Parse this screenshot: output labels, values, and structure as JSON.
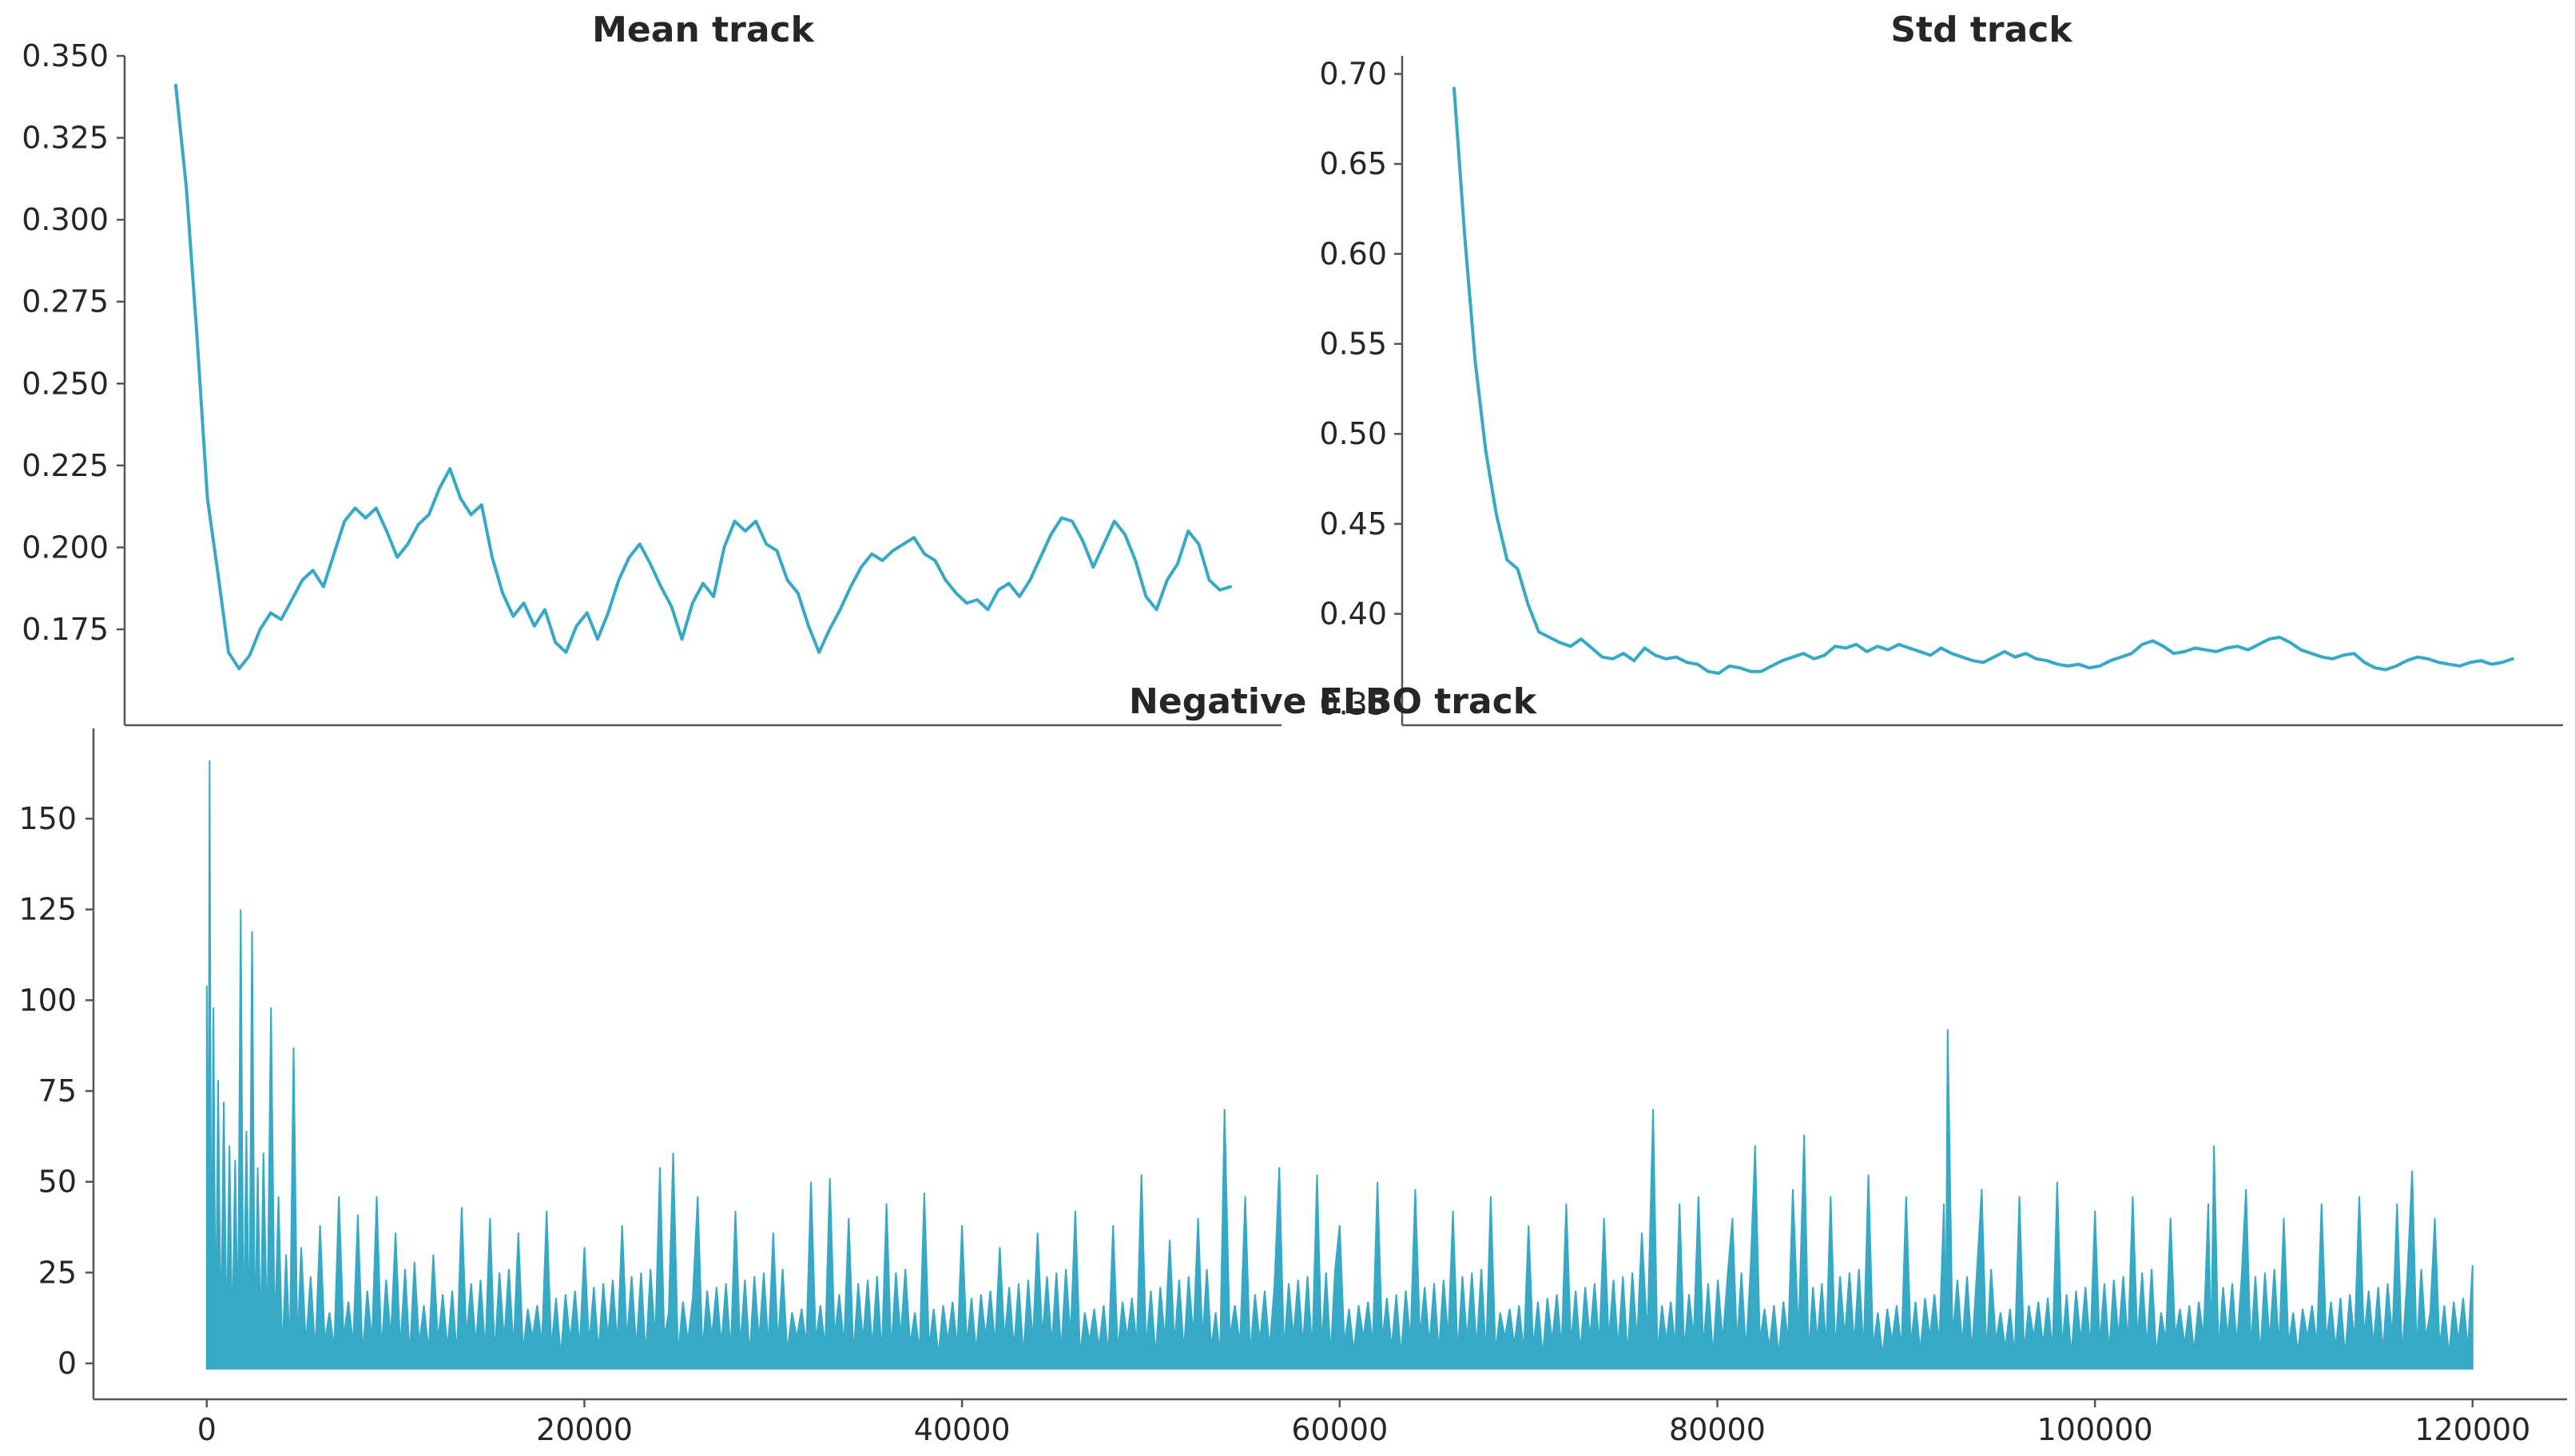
{
  "figure": {
    "background": "#ffffff",
    "line_color": "#35a9c6",
    "text_color": "#262626"
  },
  "chart_data": [
    {
      "id": "mean",
      "type": "line",
      "title": "Mean track",
      "xlabel": "",
      "ylabel": "",
      "xlim": [
        0,
        120000
      ],
      "ylim": [
        0.155,
        0.35
      ],
      "yticks": [
        0.175,
        0.2,
        0.225,
        0.25,
        0.275,
        0.3,
        0.325,
        0.35
      ],
      "ytick_labels": [
        "0.175",
        "0.200",
        "0.225",
        "0.250",
        "0.275",
        "0.300",
        "0.325",
        "0.350"
      ],
      "x_ticks_visible": false,
      "grid": false,
      "series": [
        {
          "color": "#35a9c6",
          "x": [
            0,
            1200,
            2400,
            3600,
            4800,
            6000,
            7200,
            8400,
            9600,
            10800,
            12000,
            13200,
            14400,
            15600,
            16800,
            18000,
            19200,
            20400,
            21600,
            22800,
            24000,
            25200,
            26400,
            27600,
            28800,
            30000,
            31200,
            32400,
            33600,
            34800,
            36000,
            37200,
            38400,
            39600,
            40800,
            42000,
            43200,
            44400,
            45600,
            46800,
            48000,
            49200,
            50400,
            51600,
            52800,
            54000,
            55200,
            56400,
            57600,
            58800,
            60000,
            61200,
            62400,
            63600,
            64800,
            66000,
            67200,
            68400,
            69600,
            70800,
            72000,
            73200,
            74400,
            75600,
            76800,
            78000,
            79200,
            80400,
            81600,
            82800,
            84000,
            85200,
            86400,
            87600,
            88800,
            90000,
            91200,
            92400,
            93600,
            94800,
            96000,
            97200,
            98400,
            99600,
            100800,
            102000,
            103200,
            104400,
            105600,
            106800,
            108000,
            109200,
            110400,
            111600,
            112800,
            114000,
            115200,
            116400,
            117600,
            118800,
            120000
          ],
          "y": [
            0.341,
            0.31,
            0.265,
            0.215,
            0.192,
            0.168,
            0.163,
            0.167,
            0.175,
            0.18,
            0.178,
            0.184,
            0.19,
            0.193,
            0.188,
            0.198,
            0.208,
            0.212,
            0.209,
            0.212,
            0.205,
            0.197,
            0.201,
            0.207,
            0.21,
            0.218,
            0.224,
            0.215,
            0.21,
            0.213,
            0.197,
            0.186,
            0.179,
            0.183,
            0.176,
            0.181,
            0.171,
            0.168,
            0.176,
            0.18,
            0.172,
            0.18,
            0.19,
            0.197,
            0.201,
            0.195,
            0.188,
            0.182,
            0.172,
            0.183,
            0.189,
            0.185,
            0.2,
            0.208,
            0.205,
            0.208,
            0.201,
            0.199,
            0.19,
            0.186,
            0.176,
            0.168,
            0.175,
            0.181,
            0.188,
            0.194,
            0.198,
            0.196,
            0.199,
            0.201,
            0.203,
            0.198,
            0.196,
            0.19,
            0.186,
            0.183,
            0.184,
            0.181,
            0.187,
            0.189,
            0.185,
            0.19,
            0.197,
            0.204,
            0.209,
            0.208,
            0.202,
            0.194,
            0.201,
            0.208,
            0.204,
            0.196,
            0.185,
            0.181,
            0.19,
            0.195,
            0.205,
            0.201,
            0.19,
            0.187,
            0.188
          ]
        }
      ]
    },
    {
      "id": "std",
      "type": "line",
      "title": "Std track",
      "xlabel": "",
      "ylabel": "",
      "xlim": [
        0,
        120000
      ],
      "ylim": [
        0.355,
        0.71
      ],
      "yticks": [
        0.35,
        0.4,
        0.45,
        0.5,
        0.55,
        0.6,
        0.65,
        0.7
      ],
      "ytick_labels": [
        "0.35",
        "0.40",
        "0.45",
        "0.50",
        "0.55",
        "0.60",
        "0.65",
        "0.70"
      ],
      "x_ticks_visible": false,
      "grid": false,
      "series": [
        {
          "color": "#35a9c6",
          "x": [
            0,
            1200,
            2400,
            3600,
            4800,
            6000,
            7200,
            8400,
            9600,
            10800,
            12000,
            13200,
            14400,
            15600,
            16800,
            18000,
            19200,
            20400,
            21600,
            22800,
            24000,
            25200,
            26400,
            27600,
            28800,
            30000,
            31200,
            32400,
            33600,
            34800,
            36000,
            37200,
            38400,
            39600,
            40800,
            42000,
            43200,
            44400,
            45600,
            46800,
            48000,
            49200,
            50400,
            51600,
            52800,
            54000,
            55200,
            56400,
            57600,
            58800,
            60000,
            61200,
            62400,
            63600,
            64800,
            66000,
            67200,
            68400,
            69600,
            70800,
            72000,
            73200,
            74400,
            75600,
            76800,
            78000,
            79200,
            80400,
            81600,
            82800,
            84000,
            85200,
            86400,
            87600,
            88800,
            90000,
            91200,
            92400,
            93600,
            94800,
            96000,
            97200,
            98400,
            99600,
            100800,
            102000,
            103200,
            104400,
            105600,
            106800,
            108000,
            109200,
            110400,
            111600,
            112800,
            114000,
            115200,
            116400,
            117600,
            118800,
            120000
          ],
          "y": [
            0.692,
            0.61,
            0.54,
            0.49,
            0.455,
            0.43,
            0.425,
            0.405,
            0.39,
            0.387,
            0.384,
            0.382,
            0.386,
            0.381,
            0.376,
            0.375,
            0.378,
            0.374,
            0.381,
            0.377,
            0.375,
            0.376,
            0.373,
            0.372,
            0.368,
            0.367,
            0.371,
            0.37,
            0.368,
            0.368,
            0.371,
            0.374,
            0.376,
            0.378,
            0.375,
            0.377,
            0.382,
            0.381,
            0.383,
            0.379,
            0.382,
            0.38,
            0.383,
            0.381,
            0.379,
            0.377,
            0.381,
            0.378,
            0.376,
            0.374,
            0.373,
            0.376,
            0.379,
            0.376,
            0.378,
            0.375,
            0.374,
            0.372,
            0.371,
            0.372,
            0.37,
            0.371,
            0.374,
            0.376,
            0.378,
            0.383,
            0.385,
            0.382,
            0.378,
            0.379,
            0.381,
            0.38,
            0.379,
            0.381,
            0.382,
            0.38,
            0.383,
            0.386,
            0.387,
            0.384,
            0.38,
            0.378,
            0.376,
            0.375,
            0.377,
            0.378,
            0.373,
            0.37,
            0.369,
            0.371,
            0.374,
            0.376,
            0.375,
            0.373,
            0.372,
            0.371,
            0.373,
            0.374,
            0.372,
            0.373,
            0.375
          ]
        }
      ]
    },
    {
      "id": "elbo",
      "type": "line",
      "title": "Negative ELBO track",
      "xlabel": "",
      "ylabel": "",
      "xlim": [
        -6000,
        125000
      ],
      "ylim": [
        -8,
        170
      ],
      "xticks": [
        0,
        20000,
        40000,
        60000,
        80000,
        100000,
        120000
      ],
      "xtick_labels": [
        "0",
        "20000",
        "40000",
        "60000",
        "80000",
        "100000",
        "120000"
      ],
      "yticks": [
        0,
        25,
        50,
        75,
        100,
        125,
        150
      ],
      "ytick_labels": [
        "0",
        "25",
        "50",
        "75",
        "100",
        "125",
        "150"
      ],
      "grid": false,
      "baseline": -1.5,
      "series": [
        {
          "color": "#35a9c6",
          "x": [
            0,
            150,
            350,
            600,
            900,
            1200,
            1500,
            1800,
            2100,
            2400,
            2700,
            3000,
            3400,
            3800,
            4200,
            4600,
            5000,
            6000,
            7000,
            8000,
            9000,
            10000,
            11000,
            12000,
            13500,
            15000,
            16500,
            18000,
            20000,
            22000,
            24000,
            24700,
            26000,
            28000,
            30000,
            32000,
            33000,
            34000,
            36000,
            38000,
            40000,
            42000,
            44000,
            46000,
            48000,
            49500,
            51000,
            52500,
            53900,
            55000,
            56800,
            58800,
            60000,
            62000,
            64000,
            66000,
            68000,
            70000,
            72000,
            74000,
            76000,
            76600,
            78000,
            79000,
            80800,
            82000,
            84000,
            84600,
            86000,
            88000,
            90000,
            92000,
            92200,
            94000,
            96000,
            98000,
            100000,
            102000,
            104000,
            106000,
            106300,
            108000,
            110000,
            112000,
            114000,
            116000,
            116800,
            118000,
            120000
          ],
          "y": [
            104,
            166,
            98,
            78,
            72,
            60,
            56,
            125,
            64,
            119,
            54,
            58,
            98,
            46,
            30,
            87,
            32,
            38,
            46,
            41,
            46,
            36,
            28,
            30,
            43,
            40,
            36,
            42,
            32,
            38,
            54,
            58,
            46,
            42,
            36,
            50,
            51,
            40,
            44,
            47,
            38,
            32,
            36,
            42,
            38,
            52,
            34,
            40,
            70,
            46,
            54,
            52,
            38,
            50,
            48,
            42,
            46,
            38,
            44,
            40,
            36,
            70,
            44,
            46,
            40,
            60,
            48,
            63,
            46,
            52,
            46,
            44,
            92,
            48,
            46,
            50,
            42,
            46,
            40,
            44,
            60,
            48,
            40,
            44,
            46,
            44,
            53,
            40,
            27
          ]
        }
      ]
    }
  ]
}
